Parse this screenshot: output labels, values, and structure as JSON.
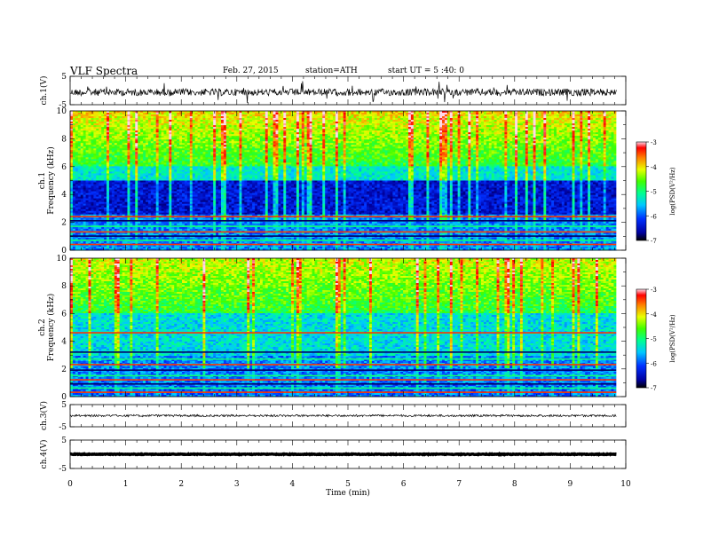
{
  "header": {
    "title": "VLF  Spectra",
    "date": "Feb. 27, 2015",
    "station": "station=ATH",
    "start_time": "start  UT =   5 :40: 0"
  },
  "chart_data": [
    {
      "type": "line",
      "panel": "ch1-waveform",
      "ylabel": "ch.1(V)",
      "ylim": [
        -5,
        5
      ],
      "y_ticklabels": [
        "5",
        "-5"
      ],
      "xlim": [
        0,
        10
      ]
    },
    {
      "type": "heatmap",
      "panel": "ch1-spectrogram",
      "ylabel_line1": "ch.1",
      "ylabel_line2": "Frequency  (kHz)",
      "ylim": [
        0,
        10
      ],
      "y_ticklabels": [
        "0",
        "2",
        "4",
        "6",
        "8",
        "10"
      ],
      "xlim": [
        0,
        10
      ],
      "colorbar": {
        "label": "log(PSD(V²/Hz)",
        "range": [
          -7,
          -3
        ],
        "ticklabels": [
          "-3",
          "-4",
          "-5",
          "-6",
          "-7"
        ]
      }
    },
    {
      "type": "heatmap",
      "panel": "ch2-spectrogram",
      "ylabel_line1": "ch.2",
      "ylabel_line2": "Frequency  (kHz)",
      "ylim": [
        0,
        10
      ],
      "y_ticklabels": [
        "0",
        "2",
        "4",
        "6",
        "8",
        "10"
      ],
      "xlim": [
        0,
        10
      ],
      "colorbar": {
        "label": "log(PSD(V²/Hz)",
        "range": [
          -7,
          -3
        ],
        "ticklabels": [
          "-3",
          "-4",
          "-5",
          "-6",
          "-7"
        ]
      }
    },
    {
      "type": "line",
      "panel": "ch3-waveform",
      "ylabel": "ch.3(V)",
      "ylim": [
        -5,
        5
      ],
      "y_ticklabels": [
        "5",
        "-5"
      ],
      "xlim": [
        0,
        10
      ]
    },
    {
      "type": "line",
      "panel": "ch4-waveform",
      "ylabel": "ch.4(V)",
      "ylim": [
        -5,
        5
      ],
      "y_ticklabels": [
        "5",
        "-5"
      ],
      "xlim": [
        0,
        10
      ]
    }
  ],
  "xaxis": {
    "label": "Time  (min)",
    "ticklabels": [
      "0",
      "1",
      "2",
      "3",
      "4",
      "5",
      "6",
      "7",
      "8",
      "9",
      "10"
    ],
    "data_end": 9.83
  }
}
